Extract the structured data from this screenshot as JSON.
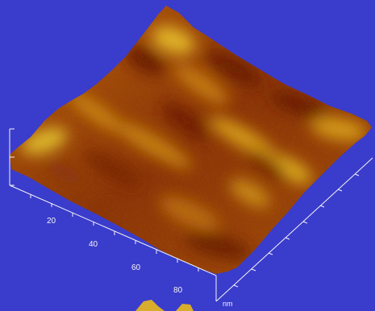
{
  "figure": {
    "type": "afm-3d-surface",
    "background_color": "#3a3ccc",
    "surface_colors": [
      "#5a1408",
      "#8e3a06",
      "#c06a0a",
      "#dca21c",
      "#e9cb3c"
    ],
    "axis_color": "#f4f4f4"
  },
  "axis": {
    "ticks": [
      "20",
      "40",
      "60",
      "80"
    ],
    "unit": "nm"
  }
}
